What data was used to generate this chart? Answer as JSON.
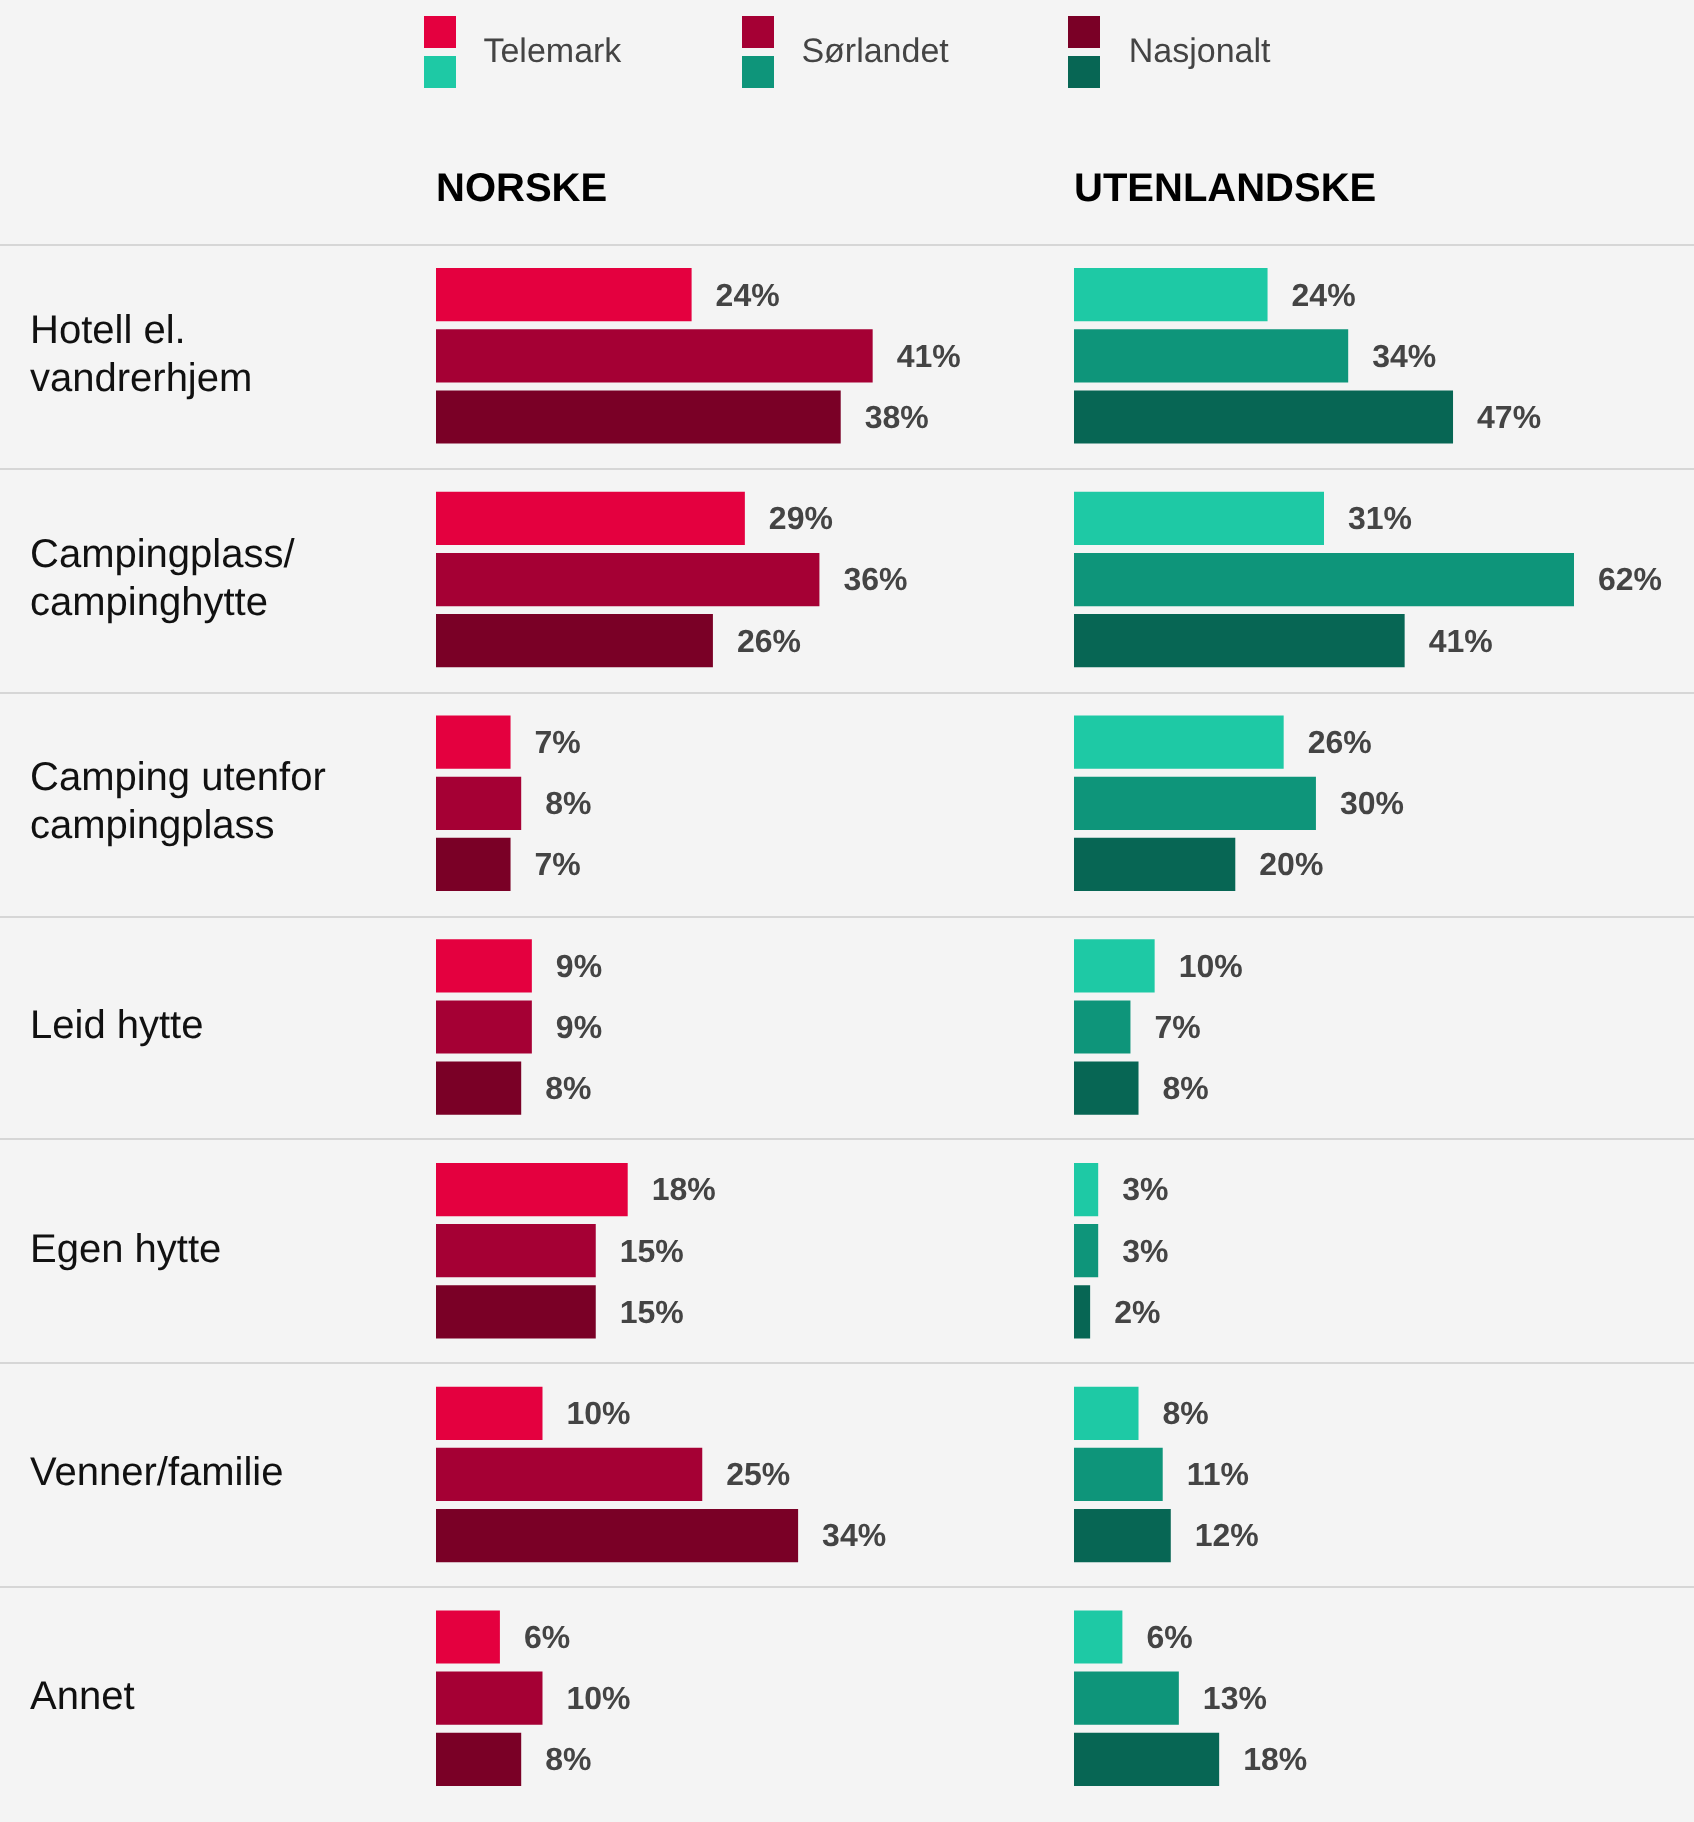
{
  "chart_data": [
    {
      "type": "bar",
      "orientation": "horizontal",
      "title": "NORSKE",
      "categories": [
        "Hotell el. vandrerhjem",
        "Campingplass/ campinghytte",
        "Camping utenfor campingplass",
        "Leid hytte",
        "Egen hytte",
        "Venner/familie",
        "Annet"
      ],
      "grid": "y",
      "legend": "top",
      "tick_labels": "y",
      "series": [
        {
          "name": "Telemark",
          "color": "#e4003f",
          "values": [
            24,
            29,
            7,
            9,
            18,
            10,
            6
          ],
          "value_labels": [
            "24%",
            "29%",
            "7%",
            "9%",
            "18%",
            "10%",
            "6%"
          ]
        },
        {
          "name": "Sørlandet",
          "color": "#a50034",
          "values": [
            41,
            36,
            8,
            9,
            15,
            25,
            10
          ],
          "value_labels": [
            "41%",
            "36%",
            "8%",
            "9%",
            "15%",
            "25%",
            "10%"
          ]
        },
        {
          "name": "Nasjonalt",
          "color": "#7a0026",
          "values": [
            38,
            26,
            7,
            8,
            15,
            34,
            8
          ],
          "value_labels": [
            "38%",
            "26%",
            "7%",
            "8%",
            "15%",
            "34%",
            "8%"
          ]
        }
      ]
    },
    {
      "type": "bar",
      "orientation": "horizontal",
      "title": "UTENLANDSKE",
      "categories": [
        null,
        null,
        null,
        null,
        null,
        null,
        null
      ],
      "grid": "y",
      "tick_labels": false,
      "series": [
        {
          "color": "#1ec9a5",
          "values": [
            24,
            31,
            26,
            10,
            3,
            8,
            6
          ],
          "value_labels": [
            "24%",
            "31%",
            "26%",
            "10%",
            "3%",
            "8%",
            "6%"
          ]
        },
        {
          "color": "#0e957a",
          "values": [
            34,
            62,
            30,
            7,
            3,
            11,
            13
          ],
          "value_labels": [
            "34%",
            "62%",
            "30%",
            "7%",
            "3%",
            "11%",
            "13%"
          ]
        },
        {
          "color": "#076654",
          "values": [
            47,
            41,
            20,
            8,
            2,
            12,
            18
          ],
          "value_labels": [
            "47%",
            "41%",
            "20%",
            "8%",
            "2%",
            "12%",
            "18%"
          ]
        }
      ]
    }
  ]
}
